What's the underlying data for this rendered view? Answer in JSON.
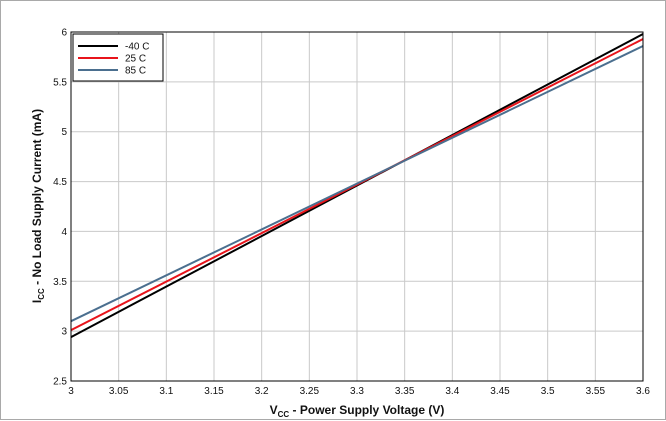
{
  "chart_data": {
    "type": "line",
    "title": "",
    "xlabel": {
      "main": "V",
      "sub": "CC",
      "rest": " - Power Supply Voltage (V)"
    },
    "ylabel": {
      "main": "I",
      "sub": "CC",
      "rest": " - No Load Supply Current (mA)"
    },
    "xlim": [
      3,
      3.6
    ],
    "ylim": [
      2.5,
      6
    ],
    "x_ticks": [
      3,
      3.05,
      3.1,
      3.15,
      3.2,
      3.25,
      3.3,
      3.35,
      3.4,
      3.45,
      3.5,
      3.55,
      3.6
    ],
    "x_tick_labels": [
      "3",
      "3.05",
      "3.1",
      "3.15",
      "3.2",
      "3.25",
      "3.3",
      "3.35",
      "3.4",
      "3.45",
      "3.5",
      "3.55",
      "3.6"
    ],
    "y_ticks": [
      2.5,
      3,
      3.5,
      4,
      4.5,
      5,
      5.5,
      6
    ],
    "y_tick_labels": [
      "2.5",
      "3",
      "3.5",
      "4",
      "4.5",
      "5",
      "5.5",
      "6"
    ],
    "grid": true,
    "legend_position": "top-left",
    "series": [
      {
        "name": "-40 C",
        "color": "#000000",
        "x": [
          3,
          3.6
        ],
        "y": [
          2.94,
          5.98
        ]
      },
      {
        "name": "25 C",
        "color": "#e8141b",
        "x": [
          3,
          3.6
        ],
        "y": [
          3.01,
          5.93
        ]
      },
      {
        "name": "85 C",
        "color": "#4b6f8f",
        "x": [
          3,
          3.6
        ],
        "y": [
          3.1,
          5.86
        ]
      }
    ]
  }
}
